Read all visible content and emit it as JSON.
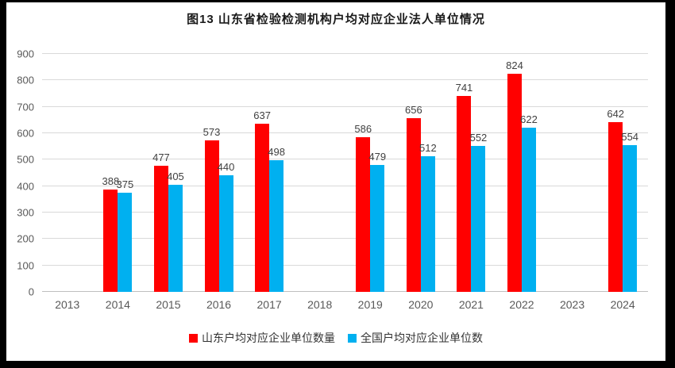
{
  "chart_data": {
    "type": "bar",
    "title": "图13 山东省检验检测机构户均对应企业法人单位情况",
    "categories": [
      "2013",
      "2014",
      "2015",
      "2016",
      "2017",
      "2018",
      "2019",
      "2020",
      "2021",
      "2022",
      "2023",
      "2024"
    ],
    "series": [
      {
        "key": "shandong",
        "name": "山东户均对应企业单位数量",
        "color": "#FF0000",
        "values": [
          null,
          388,
          477,
          573,
          637,
          null,
          586,
          656,
          741,
          824,
          null,
          642
        ]
      },
      {
        "key": "national",
        "name": "全国户均对应企业单位数",
        "color": "#00B0F0",
        "values": [
          null,
          375,
          405,
          440,
          498,
          null,
          479,
          512,
          552,
          622,
          null,
          554
        ]
      }
    ],
    "xlabel": "",
    "ylabel": "",
    "ylim": [
      0,
      900
    ],
    "ytick_step": 100,
    "grid": true,
    "legend_position": "bottom"
  }
}
